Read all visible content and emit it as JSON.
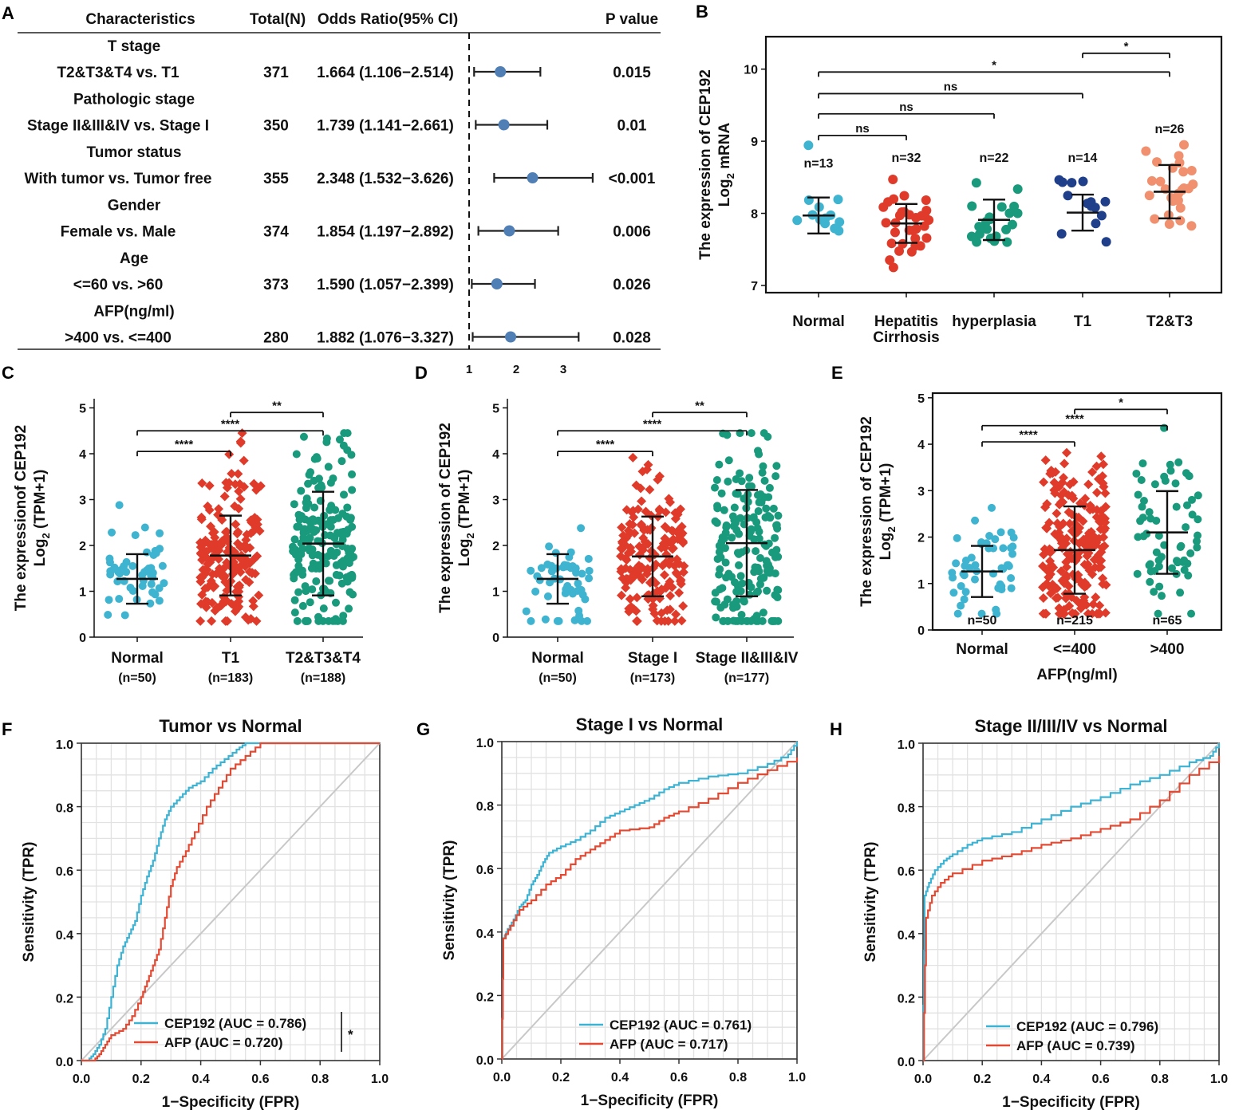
{
  "colors": {
    "normal": "#3fb4d0",
    "t1_red": "#e03b2a",
    "green": "#1a9a7c",
    "t1_navy": "#1f3f8a",
    "salmon": "#f0906e",
    "forest_point": "#4f7fb5",
    "cep_line": "#3db3d3",
    "afp_line": "#e34a33",
    "diag": "#c8c8c8"
  },
  "chart_data": [
    {
      "panel": "A",
      "type": "forest",
      "headers": [
        "Characteristics",
        "Total(N)",
        "Odds Ratio(95% CI)",
        "P value"
      ],
      "groups": [
        {
          "label": "T stage",
          "comparison": "T2&T3&T4 vs. T1",
          "n": "371",
          "or_text": "1.664 (1.106−2.514)",
          "p": "0.015",
          "or": 1.664,
          "lo": 1.106,
          "hi": 2.514
        },
        {
          "label": "Pathologic stage",
          "comparison": "Stage II&III&IV vs. Stage I",
          "n": "350",
          "or_text": "1.739 (1.141−2.661)",
          "p": "0.01",
          "or": 1.739,
          "lo": 1.141,
          "hi": 2.661
        },
        {
          "label": "Tumor status",
          "comparison": "With tumor vs. Tumor free",
          "n": "355",
          "or_text": "2.348 (1.532−3.626)",
          "p": "<0.001",
          "or": 2.348,
          "lo": 1.532,
          "hi": 3.626
        },
        {
          "label": "Gender",
          "comparison": "Female vs. Male",
          "n": "374",
          "or_text": "1.854 (1.197−2.892)",
          "p": "0.006",
          "or": 1.854,
          "lo": 1.197,
          "hi": 2.892
        },
        {
          "label": "Age",
          "comparison": "<=60 vs. >60",
          "n": "373",
          "or_text": "1.590 (1.057−2.399)",
          "p": "0.026",
          "or": 1.59,
          "lo": 1.057,
          "hi": 2.399
        },
        {
          "label": "AFP(ng/ml)",
          "comparison": ">400 vs. <=400",
          "n": "280",
          "or_text": "1.882 (1.076−3.327)",
          "p": "0.028",
          "or": 1.882,
          "lo": 1.076,
          "hi": 3.327
        }
      ],
      "xticks": [
        "1",
        "2",
        "3"
      ],
      "xrange": [
        0.95,
        3.7
      ],
      "reference": 1
    },
    {
      "panel": "B",
      "type": "scatter",
      "ylabel_line1": "The expression of CEP192",
      "ylabel_line2_main": "Log",
      "ylabel_line2_sub": "2",
      "ylabel_line2_end": " mRNA",
      "ylim": [
        6.9,
        10.45
      ],
      "yticks": [
        "7",
        "8",
        "9",
        "10"
      ],
      "groups": [
        {
          "name": "Normal",
          "name2": "",
          "n_label": "n=13",
          "mean": 7.97,
          "sd": 0.25,
          "n_pts": 13,
          "color": "#3fb4d0",
          "marker": "circle"
        },
        {
          "name": "Hepatitis",
          "name2": "Cirrhosis",
          "n_label": "n=32",
          "mean": 7.86,
          "sd": 0.27,
          "n_pts": 32,
          "color": "#e03b2a",
          "marker": "circle"
        },
        {
          "name": "hyperplasia",
          "name2": "",
          "n_label": "n=22",
          "mean": 7.91,
          "sd": 0.28,
          "n_pts": 22,
          "color": "#1a9a7c",
          "marker": "circle"
        },
        {
          "name": "T1",
          "name2": "",
          "n_label": "n=14",
          "mean": 8.01,
          "sd": 0.25,
          "n_pts": 14,
          "color": "#1f3f8a",
          "marker": "circle"
        },
        {
          "name": "T2&T3",
          "name2": "",
          "n_label": "n=26",
          "mean": 8.3,
          "sd": 0.37,
          "n_pts": 26,
          "color": "#f0906e",
          "marker": "circle"
        }
      ],
      "comparisons": [
        {
          "from": 3,
          "to": 4,
          "label": "*",
          "level": 10.22
        },
        {
          "from": 0,
          "to": 4,
          "label": "*",
          "level": 9.96
        },
        {
          "from": 0,
          "to": 3,
          "label": "ns",
          "level": 9.66
        },
        {
          "from": 0,
          "to": 2,
          "label": "ns",
          "level": 9.38
        },
        {
          "from": 0,
          "to": 1,
          "label": "ns",
          "level": 9.08
        }
      ]
    },
    {
      "panel": "C",
      "type": "scatter",
      "ylabel_line1": "The expressionof CEP192",
      "ylabel_line2_main": "Log",
      "ylabel_line2_sub": "2",
      "ylabel_line2_end": " (TPM+1)",
      "ylim": [
        0,
        5.2
      ],
      "yticks": [
        "0",
        "1",
        "2",
        "3",
        "4",
        "5"
      ],
      "groups": [
        {
          "name": "Normal",
          "name2": "(n=50)",
          "n_label": "",
          "mean": 1.27,
          "sd": 0.54,
          "n_pts": 50,
          "color": "#3fb4d0",
          "marker": "circle"
        },
        {
          "name": "T1",
          "name2": "(n=183)",
          "n_label": "",
          "mean": 1.78,
          "sd": 0.87,
          "n_pts": 183,
          "color": "#e03b2a",
          "marker": "diamond"
        },
        {
          "name": "T2&T3&T4",
          "name2": "(n=188)",
          "n_label": "",
          "mean": 2.04,
          "sd": 1.13,
          "n_pts": 188,
          "color": "#1a9a7c",
          "marker": "circle"
        }
      ],
      "comparisons": [
        {
          "from": 1,
          "to": 2,
          "label": "**",
          "level": 4.9
        },
        {
          "from": 0,
          "to": 2,
          "label": "****",
          "level": 4.5
        },
        {
          "from": 0,
          "to": 1,
          "label": "****",
          "level": 4.05
        }
      ]
    },
    {
      "panel": "D",
      "type": "scatter",
      "ylabel_line1": "The expression of CEP192",
      "ylabel_line2_main": "Log",
      "ylabel_line2_sub": "2",
      "ylabel_line2_end": " (TPM+1)",
      "ylim": [
        0,
        5.2
      ],
      "yticks": [
        "0",
        "1",
        "2",
        "3",
        "4",
        "5"
      ],
      "groups": [
        {
          "name": "Normal",
          "name2": "(n=50)",
          "n_label": "",
          "mean": 1.27,
          "sd": 0.54,
          "n_pts": 50,
          "color": "#3fb4d0",
          "marker": "circle"
        },
        {
          "name": "Stage I",
          "name2": "(n=173)",
          "n_label": "",
          "mean": 1.76,
          "sd": 0.87,
          "n_pts": 173,
          "color": "#e03b2a",
          "marker": "diamond"
        },
        {
          "name": "Stage II&III&IV",
          "name2": "(n=177)",
          "n_label": "",
          "mean": 2.05,
          "sd": 1.16,
          "n_pts": 177,
          "color": "#1a9a7c",
          "marker": "circle"
        }
      ],
      "comparisons": [
        {
          "from": 1,
          "to": 2,
          "label": "**",
          "level": 4.9
        },
        {
          "from": 0,
          "to": 2,
          "label": "****",
          "level": 4.5
        },
        {
          "from": 0,
          "to": 1,
          "label": "****",
          "level": 4.05
        }
      ]
    },
    {
      "panel": "E",
      "type": "scatter",
      "ylabel_line1": "The expression of CEP192",
      "ylabel_line2_main": "Log",
      "ylabel_line2_sub": "2",
      "ylabel_line2_end": " (TPM+1)",
      "xlabel": "AFP(ng/ml)",
      "ylim": [
        0,
        5.1
      ],
      "yticks": [
        "0",
        "1",
        "2",
        "3",
        "4",
        "5"
      ],
      "groups": [
        {
          "name": "Normal",
          "name2": "",
          "n_label": "n=50",
          "mean": 1.26,
          "sd": 0.55,
          "n_pts": 50,
          "color": "#3fb4d0",
          "marker": "circle"
        },
        {
          "name": "<=400",
          "name2": "",
          "n_label": "n=215",
          "mean": 1.72,
          "sd": 0.94,
          "n_pts": 215,
          "color": "#e03b2a",
          "marker": "diamond"
        },
        {
          "name": ">400",
          "name2": "",
          "n_label": "n=65",
          "mean": 2.1,
          "sd": 0.89,
          "n_pts": 65,
          "color": "#1a9a7c",
          "marker": "circle"
        }
      ],
      "comparisons": [
        {
          "from": 1,
          "to": 2,
          "label": "*",
          "level": 4.75
        },
        {
          "from": 0,
          "to": 2,
          "label": "****",
          "level": 4.4
        },
        {
          "from": 0,
          "to": 1,
          "label": "****",
          "level": 4.05
        }
      ]
    },
    {
      "panel": "F",
      "type": "line",
      "title": "Tumor vs Normal",
      "xlabel": "1−Specificity (FPR)",
      "ylabel": "Sensitivity (TPR)",
      "ticks": [
        "0.0",
        "0.2",
        "0.4",
        "0.6",
        "0.8",
        "1.0"
      ],
      "legend_note": "*",
      "series": [
        {
          "name": "CEP192 (AUC = 0.786)",
          "color": "#3db3d3",
          "points": [
            [
              0,
              0
            ],
            [
              0.02,
              0
            ],
            [
              0.04,
              0.02
            ],
            [
              0.06,
              0.05
            ],
            [
              0.08,
              0.1
            ],
            [
              0.1,
              0.2
            ],
            [
              0.12,
              0.3
            ],
            [
              0.14,
              0.36
            ],
            [
              0.16,
              0.4
            ],
            [
              0.18,
              0.44
            ],
            [
              0.2,
              0.52
            ],
            [
              0.22,
              0.58
            ],
            [
              0.24,
              0.63
            ],
            [
              0.26,
              0.7
            ],
            [
              0.28,
              0.76
            ],
            [
              0.3,
              0.8
            ],
            [
              0.33,
              0.83
            ],
            [
              0.36,
              0.86
            ],
            [
              0.4,
              0.88
            ],
            [
              0.44,
              0.92
            ],
            [
              0.48,
              0.95
            ],
            [
              0.52,
              0.98
            ],
            [
              0.55,
              1.0
            ],
            [
              1.0,
              1.0
            ]
          ]
        },
        {
          "name": "AFP (AUC = 0.720)",
          "color": "#e34a33",
          "points": [
            [
              0,
              0
            ],
            [
              0.04,
              0
            ],
            [
              0.06,
              0.02
            ],
            [
              0.08,
              0.05
            ],
            [
              0.1,
              0.08
            ],
            [
              0.14,
              0.1
            ],
            [
              0.17,
              0.14
            ],
            [
              0.2,
              0.2
            ],
            [
              0.22,
              0.25
            ],
            [
              0.24,
              0.3
            ],
            [
              0.26,
              0.35
            ],
            [
              0.28,
              0.45
            ],
            [
              0.3,
              0.55
            ],
            [
              0.32,
              0.61
            ],
            [
              0.35,
              0.66
            ],
            [
              0.38,
              0.72
            ],
            [
              0.42,
              0.8
            ],
            [
              0.46,
              0.86
            ],
            [
              0.5,
              0.92
            ],
            [
              0.55,
              0.96
            ],
            [
              0.6,
              1.0
            ],
            [
              1.0,
              1.0
            ]
          ]
        }
      ]
    },
    {
      "panel": "G",
      "type": "line",
      "title": "Stage I vs Normal",
      "xlabel": "1−Specificity (FPR)",
      "ylabel": "Sensitivity (TPR)",
      "ticks": [
        "0.0",
        "0.2",
        "0.4",
        "0.6",
        "0.8",
        "1.0"
      ],
      "legend_note": "",
      "series": [
        {
          "name": "CEP192 (AUC = 0.761)",
          "color": "#3db3d3",
          "points": [
            [
              0,
              0
            ],
            [
              0.005,
              0.38
            ],
            [
              0.02,
              0.41
            ],
            [
              0.04,
              0.44
            ],
            [
              0.06,
              0.48
            ],
            [
              0.08,
              0.5
            ],
            [
              0.1,
              0.55
            ],
            [
              0.12,
              0.58
            ],
            [
              0.14,
              0.62
            ],
            [
              0.16,
              0.65
            ],
            [
              0.2,
              0.67
            ],
            [
              0.25,
              0.69
            ],
            [
              0.3,
              0.72
            ],
            [
              0.35,
              0.76
            ],
            [
              0.4,
              0.78
            ],
            [
              0.45,
              0.8
            ],
            [
              0.5,
              0.82
            ],
            [
              0.55,
              0.85
            ],
            [
              0.6,
              0.87
            ],
            [
              0.7,
              0.89
            ],
            [
              0.8,
              0.9
            ],
            [
              0.9,
              0.93
            ],
            [
              0.97,
              0.96
            ],
            [
              1.0,
              1.0
            ]
          ]
        },
        {
          "name": "AFP (AUC = 0.717)",
          "color": "#e34a33",
          "points": [
            [
              0,
              0
            ],
            [
              0.005,
              0.38
            ],
            [
              0.03,
              0.42
            ],
            [
              0.06,
              0.47
            ],
            [
              0.1,
              0.5
            ],
            [
              0.15,
              0.55
            ],
            [
              0.2,
              0.58
            ],
            [
              0.25,
              0.63
            ],
            [
              0.3,
              0.66
            ],
            [
              0.35,
              0.69
            ],
            [
              0.4,
              0.72
            ],
            [
              0.5,
              0.73
            ],
            [
              0.55,
              0.76
            ],
            [
              0.6,
              0.78
            ],
            [
              0.7,
              0.82
            ],
            [
              0.8,
              0.87
            ],
            [
              0.9,
              0.91
            ],
            [
              1.0,
              0.95
            ]
          ]
        }
      ]
    },
    {
      "panel": "H",
      "type": "line",
      "title": "Stage II/III/IV vs Normal",
      "xlabel": "1−Specificity (FPR)",
      "ylabel": "Sensitivity (TPR)",
      "ticks": [
        "0.0",
        "0.2",
        "0.4",
        "0.6",
        "0.8",
        "1.0"
      ],
      "legend_note": "",
      "series": [
        {
          "name": "CEP192 (AUC = 0.796)",
          "color": "#3db3d3",
          "points": [
            [
              0,
              0
            ],
            [
              0.005,
              0.52
            ],
            [
              0.02,
              0.56
            ],
            [
              0.04,
              0.6
            ],
            [
              0.07,
              0.63
            ],
            [
              0.1,
              0.65
            ],
            [
              0.15,
              0.68
            ],
            [
              0.2,
              0.7
            ],
            [
              0.3,
              0.72
            ],
            [
              0.4,
              0.76
            ],
            [
              0.5,
              0.8
            ],
            [
              0.6,
              0.83
            ],
            [
              0.7,
              0.87
            ],
            [
              0.8,
              0.9
            ],
            [
              0.9,
              0.94
            ],
            [
              0.97,
              0.96
            ],
            [
              1.0,
              1.0
            ]
          ]
        },
        {
          "name": "AFP (AUC = 0.739)",
          "color": "#e34a33",
          "points": [
            [
              0,
              0
            ],
            [
              0.01,
              0.45
            ],
            [
              0.03,
              0.52
            ],
            [
              0.06,
              0.56
            ],
            [
              0.1,
              0.59
            ],
            [
              0.2,
              0.63
            ],
            [
              0.3,
              0.65
            ],
            [
              0.4,
              0.68
            ],
            [
              0.5,
              0.7
            ],
            [
              0.6,
              0.73
            ],
            [
              0.7,
              0.76
            ],
            [
              0.8,
              0.82
            ],
            [
              0.9,
              0.9
            ],
            [
              1.0,
              0.96
            ]
          ]
        }
      ]
    }
  ]
}
